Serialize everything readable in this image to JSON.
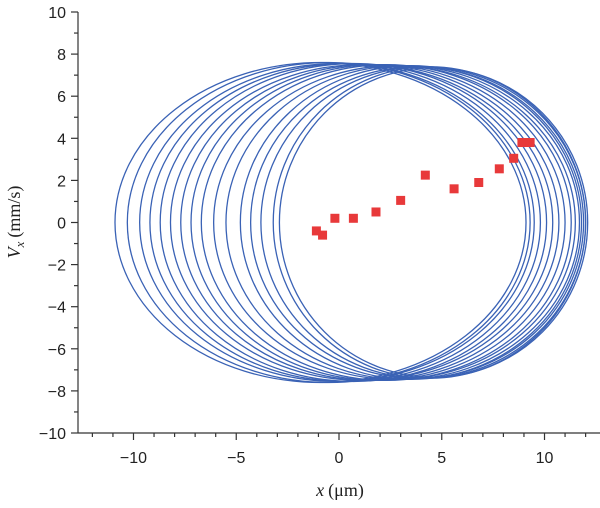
{
  "chart_data": {
    "type": "scatter",
    "title": "",
    "xlabel_var": "x",
    "xlabel_unit": "(μm)",
    "ylabel_var": "V",
    "ylabel_sub": "x",
    "ylabel_unit": "(mm/s)",
    "xlim": [
      -12.7,
      12.7
    ],
    "ylim": [
      -10,
      10
    ],
    "x_ticks": [
      -10,
      -5,
      0,
      5,
      10
    ],
    "x_tick_labels": [
      "−10",
      "−5",
      "0",
      "5",
      "10"
    ],
    "y_ticks": [
      -10,
      -8,
      -6,
      -4,
      -2,
      0,
      2,
      4,
      6,
      8,
      10
    ],
    "y_tick_labels": [
      "−10",
      "−8",
      "−6",
      "−4",
      "−2",
      "0",
      "2",
      "4",
      "6",
      "8",
      "10"
    ],
    "grid": false,
    "colors": {
      "orbit": "#3a62b5",
      "marker": "#e8393a"
    },
    "series": [
      {
        "kind": "line",
        "points_description_free": true,
        "ellipses": [
          {
            "cx": -0.9,
            "rx": 10.0,
            "ry": 7.6
          },
          {
            "cx": -0.5,
            "rx": 9.8,
            "ry": 7.6
          },
          {
            "cx": -0.1,
            "rx": 9.6,
            "ry": 7.55
          },
          {
            "cx": 0.3,
            "rx": 9.5,
            "ry": 7.55
          },
          {
            "cx": 0.7,
            "rx": 9.4,
            "ry": 7.55
          },
          {
            "cx": 1.1,
            "rx": 9.3,
            "ry": 7.5
          },
          {
            "cx": 1.5,
            "rx": 9.2,
            "ry": 7.5
          },
          {
            "cx": 1.9,
            "rx": 9.1,
            "ry": 7.5
          },
          {
            "cx": 2.3,
            "rx": 9.0,
            "ry": 7.5
          },
          {
            "cx": 2.7,
            "rx": 8.8,
            "ry": 7.45
          },
          {
            "cx": 3.1,
            "rx": 8.6,
            "ry": 7.45
          },
          {
            "cx": 3.5,
            "rx": 8.3,
            "ry": 7.45
          },
          {
            "cx": 3.8,
            "rx": 8.1,
            "ry": 7.4
          },
          {
            "cx": 4.1,
            "rx": 7.9,
            "ry": 7.4
          },
          {
            "cx": 4.4,
            "rx": 7.6,
            "ry": 7.4
          },
          {
            "cx": 4.6,
            "rx": 7.5,
            "ry": 7.35
          }
        ]
      },
      {
        "kind": "scatter",
        "x": [
          -1.1,
          -0.8,
          -0.2,
          0.7,
          1.8,
          3.0,
          4.2,
          5.6,
          6.8,
          7.8,
          8.5,
          8.9,
          9.3
        ],
        "y": [
          -0.4,
          -0.6,
          0.2,
          0.2,
          0.5,
          1.05,
          2.25,
          1.6,
          1.9,
          2.55,
          3.05,
          3.8,
          3.8
        ]
      }
    ]
  }
}
